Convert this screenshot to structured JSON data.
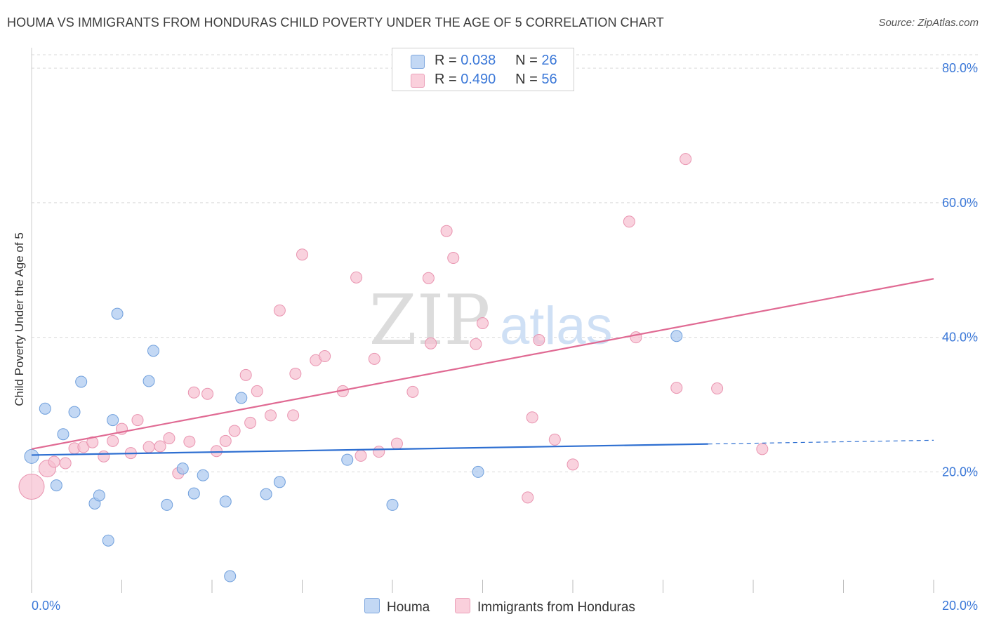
{
  "title": "HOUMA VS IMMIGRANTS FROM HONDURAS CHILD POVERTY UNDER THE AGE OF 5 CORRELATION CHART",
  "source": "Source: ZipAtlas.com",
  "watermark": {
    "zip": "ZIP",
    "atlas": "atlas"
  },
  "legend": {
    "r_label": "R =",
    "n_label": "N =",
    "rows": [
      {
        "r": "0.038",
        "n": "26"
      },
      {
        "r": "0.490",
        "n": "56"
      }
    ]
  },
  "colors": {
    "houma_fill": "#aac8ef",
    "houma_stroke": "#6f9fdc",
    "houma_line": "#2e6fd1",
    "honduras_fill": "#f7bfd0",
    "honduras_stroke": "#e994b0",
    "honduras_line": "#e06a93",
    "axis_text": "#3b78d8",
    "grid": "#d9d9d9"
  },
  "chart_data": {
    "type": "scatter",
    "title": "HOUMA VS IMMIGRANTS FROM HONDURAS CHILD POVERTY UNDER THE AGE OF 5 CORRELATION CHART",
    "xlabel": "",
    "ylabel": "Child Poverty Under the Age of 5",
    "xlim": [
      0,
      20
    ],
    "ylim": [
      2,
      82
    ],
    "x_tick_labels": [
      "0.0%",
      "20.0%"
    ],
    "y_ticks": [
      20,
      40,
      60,
      80
    ],
    "y_tick_labels": [
      "20.0%",
      "40.0%",
      "60.0%",
      "80.0%"
    ],
    "grid": true,
    "legend_position": "top-center",
    "series": [
      {
        "name": "Houma",
        "r": 0.038,
        "n": 26,
        "points": [
          [
            0.0,
            22.3
          ],
          [
            0.3,
            29.4
          ],
          [
            0.55,
            18.0
          ],
          [
            0.7,
            25.6
          ],
          [
            0.95,
            28.9
          ],
          [
            1.1,
            33.4
          ],
          [
            1.4,
            15.3
          ],
          [
            1.5,
            16.5
          ],
          [
            1.7,
            9.8
          ],
          [
            1.8,
            27.7
          ],
          [
            1.9,
            43.5
          ],
          [
            2.6,
            33.5
          ],
          [
            2.7,
            38.0
          ],
          [
            3.0,
            15.1
          ],
          [
            3.35,
            20.5
          ],
          [
            3.6,
            16.8
          ],
          [
            3.8,
            19.5
          ],
          [
            4.3,
            15.6
          ],
          [
            4.4,
            4.5
          ],
          [
            4.65,
            31.0
          ],
          [
            5.2,
            16.7
          ],
          [
            5.5,
            18.5
          ],
          [
            7.0,
            21.8
          ],
          [
            8.0,
            15.1
          ],
          [
            9.9,
            20.0
          ],
          [
            14.3,
            40.2
          ]
        ],
        "trend": {
          "x_start": 0.0,
          "y_start": 22.5,
          "x_solid_end": 15.0,
          "x_end": 20.0,
          "y_end": 24.7
        }
      },
      {
        "name": "Immigrants from Honduras",
        "r": 0.49,
        "n": 56,
        "points": [
          [
            0.0,
            17.8
          ],
          [
            0.35,
            20.5
          ],
          [
            0.5,
            21.5
          ],
          [
            0.75,
            21.3
          ],
          [
            0.95,
            23.5
          ],
          [
            1.15,
            23.7
          ],
          [
            1.35,
            24.4
          ],
          [
            1.6,
            22.3
          ],
          [
            1.8,
            24.6
          ],
          [
            2.0,
            26.4
          ],
          [
            2.2,
            22.8
          ],
          [
            2.35,
            27.7
          ],
          [
            2.6,
            23.7
          ],
          [
            2.85,
            23.8
          ],
          [
            3.05,
            25.0
          ],
          [
            3.25,
            19.8
          ],
          [
            3.5,
            24.5
          ],
          [
            3.6,
            31.8
          ],
          [
            3.9,
            31.6
          ],
          [
            4.1,
            23.1
          ],
          [
            4.3,
            24.6
          ],
          [
            4.5,
            26.1
          ],
          [
            4.75,
            34.4
          ],
          [
            4.85,
            27.3
          ],
          [
            5.0,
            32.0
          ],
          [
            5.3,
            28.4
          ],
          [
            5.5,
            44.0
          ],
          [
            5.8,
            28.4
          ],
          [
            5.85,
            34.6
          ],
          [
            6.0,
            52.3
          ],
          [
            6.3,
            36.6
          ],
          [
            6.5,
            37.2
          ],
          [
            6.9,
            32.0
          ],
          [
            7.2,
            48.9
          ],
          [
            7.3,
            22.4
          ],
          [
            7.6,
            36.8
          ],
          [
            7.7,
            23.0
          ],
          [
            8.1,
            24.2
          ],
          [
            8.45,
            31.9
          ],
          [
            8.8,
            48.8
          ],
          [
            8.85,
            39.1
          ],
          [
            9.2,
            55.8
          ],
          [
            9.35,
            51.8
          ],
          [
            9.85,
            39.0
          ],
          [
            10.0,
            42.1
          ],
          [
            11.0,
            16.2
          ],
          [
            11.1,
            28.1
          ],
          [
            11.25,
            39.6
          ],
          [
            11.6,
            24.8
          ],
          [
            12.0,
            21.1
          ],
          [
            13.25,
            57.2
          ],
          [
            13.4,
            40.0
          ],
          [
            14.3,
            32.5
          ],
          [
            14.5,
            66.5
          ],
          [
            15.2,
            32.4
          ],
          [
            16.2,
            23.4
          ]
        ],
        "trend": {
          "x_start": 0.0,
          "y_start": 23.4,
          "x_end": 20.0,
          "y_end": 48.7
        }
      }
    ]
  }
}
